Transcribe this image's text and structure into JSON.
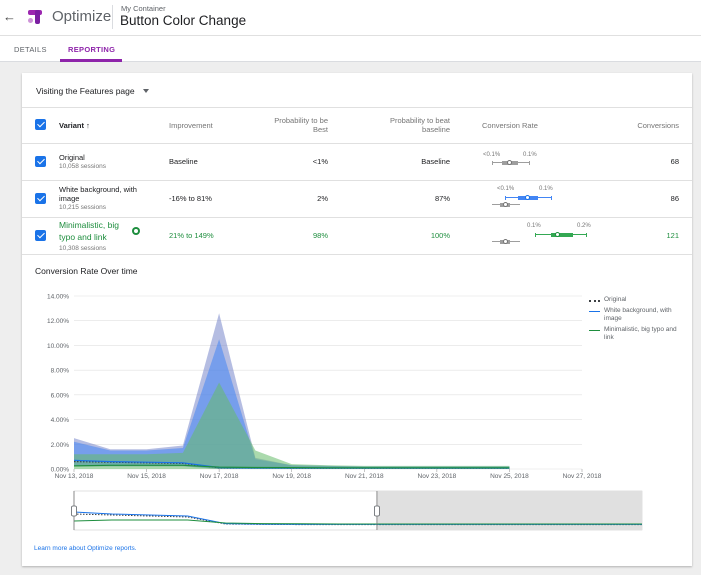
{
  "header": {
    "back_label": "←",
    "app_name": "Optimize",
    "container": "My Container",
    "title": "Button Color Change"
  },
  "tabs": [
    {
      "label": "DETAILS",
      "active": false
    },
    {
      "label": "REPORTING",
      "active": true
    }
  ],
  "report": {
    "objective": "Visiting the Features page",
    "columns": {
      "variant": "Variant",
      "improvement": "Improvement",
      "prob_best": "Probability to be Best",
      "prob_beat": "Probability to beat baseline",
      "conv_rate": "Conversion Rate",
      "conversions": "Conversions"
    },
    "rows": [
      {
        "name": "Original",
        "sessions": "10,058 sessions",
        "improvement": "Baseline",
        "prob_best": "<1%",
        "prob_beat": "Baseline",
        "ci_low_label": "<0.1%",
        "ci_high_label": "0.1%",
        "conversions": "68"
      },
      {
        "name": "White background, with image",
        "sessions": "10,215 sessions",
        "improvement": "-16% to 81%",
        "prob_best": "2%",
        "prob_beat": "87%",
        "ci_low_label": "<0.1%",
        "ci_high_label": "0.1%",
        "conversions": "86"
      },
      {
        "name": "Minimalistic, big typo and link",
        "sessions": "10,308 sessions",
        "improvement": "21% to 149%",
        "prob_best": "98%",
        "prob_beat": "100%",
        "ci_low_label": "0.1%",
        "ci_high_label": "0.2%",
        "conversions": "121",
        "leader": true
      }
    ]
  },
  "chart_section_title": "Conversion Rate Over time",
  "chart_data": {
    "type": "line",
    "title": "Conversion Rate Over time",
    "x_ticks": [
      "Nov 13, 2018",
      "Nov 15, 2018",
      "Nov 17, 2018",
      "Nov 19, 2018",
      "Nov 21, 2018",
      "Nov 23, 2018",
      "Nov 25, 2018",
      "Nov 27, 2018"
    ],
    "y_ticks": [
      "0.00%",
      "2.00%",
      "4.00%",
      "6.00%",
      "8.00%",
      "10.00%",
      "12.00%",
      "14.00%"
    ],
    "ylim": [
      0,
      14
    ],
    "x": [
      "Nov 13, 2018",
      "Nov 14, 2018",
      "Nov 15, 2018",
      "Nov 16, 2018",
      "Nov 17, 2018",
      "Nov 18, 2018",
      "Nov 19, 2018",
      "Nov 20, 2018",
      "Nov 21, 2018",
      "Nov 22, 2018",
      "Nov 23, 2018",
      "Nov 24, 2018",
      "Nov 25, 2018"
    ],
    "series": [
      {
        "name": "Original",
        "color": "#3c4043",
        "style": "dotted",
        "values": [
          0.6,
          0.55,
          0.5,
          0.45,
          0.1,
          0.08,
          0.07,
          0.07,
          0.07,
          0.07,
          0.07,
          0.07,
          0.07
        ],
        "band_low": [
          0.2,
          0.2,
          0.2,
          0.2,
          0.0,
          0.0,
          0.0,
          0.0,
          0.0,
          0.0,
          0.0,
          0.0,
          0.0
        ],
        "band_high": [
          2.5,
          1.6,
          1.6,
          1.9,
          12.6,
          0.9,
          0.3,
          0.25,
          0.2,
          0.2,
          0.2,
          0.2,
          0.2
        ],
        "band_color": "#7986cb"
      },
      {
        "name": "White background, with image",
        "color": "#1a73e8",
        "style": "solid",
        "values": [
          0.7,
          0.6,
          0.55,
          0.5,
          0.12,
          0.09,
          0.08,
          0.08,
          0.08,
          0.08,
          0.08,
          0.08,
          0.08
        ],
        "band_low": [
          0.3,
          0.25,
          0.25,
          0.25,
          0.0,
          0.0,
          0.0,
          0.0,
          0.0,
          0.0,
          0.0,
          0.0,
          0.0
        ],
        "band_high": [
          2.2,
          1.5,
          1.5,
          1.7,
          10.5,
          0.8,
          0.3,
          0.25,
          0.2,
          0.2,
          0.2,
          0.2,
          0.2
        ],
        "band_color": "#4285f4"
      },
      {
        "name": "Minimalistic, big typo and link",
        "color": "#1e8e3e",
        "style": "solid",
        "values": [
          0.25,
          0.3,
          0.3,
          0.3,
          0.15,
          0.12,
          0.11,
          0.1,
          0.1,
          0.1,
          0.1,
          0.1,
          0.1
        ],
        "band_low": [
          0.0,
          0.0,
          0.0,
          0.0,
          0.0,
          0.0,
          0.0,
          0.0,
          0.0,
          0.0,
          0.0,
          0.0,
          0.0
        ],
        "band_high": [
          1.2,
          1.2,
          1.2,
          1.3,
          7.0,
          1.5,
          0.4,
          0.3,
          0.25,
          0.25,
          0.25,
          0.25,
          0.25
        ],
        "band_color": "#66bb6a"
      }
    ],
    "legend_position": "right",
    "grid": true
  },
  "navigator": {
    "window_start": "Nov 13, 2018",
    "window_end": "Nov 21, 2018"
  },
  "footer_link": "Learn more about Optimize reports."
}
